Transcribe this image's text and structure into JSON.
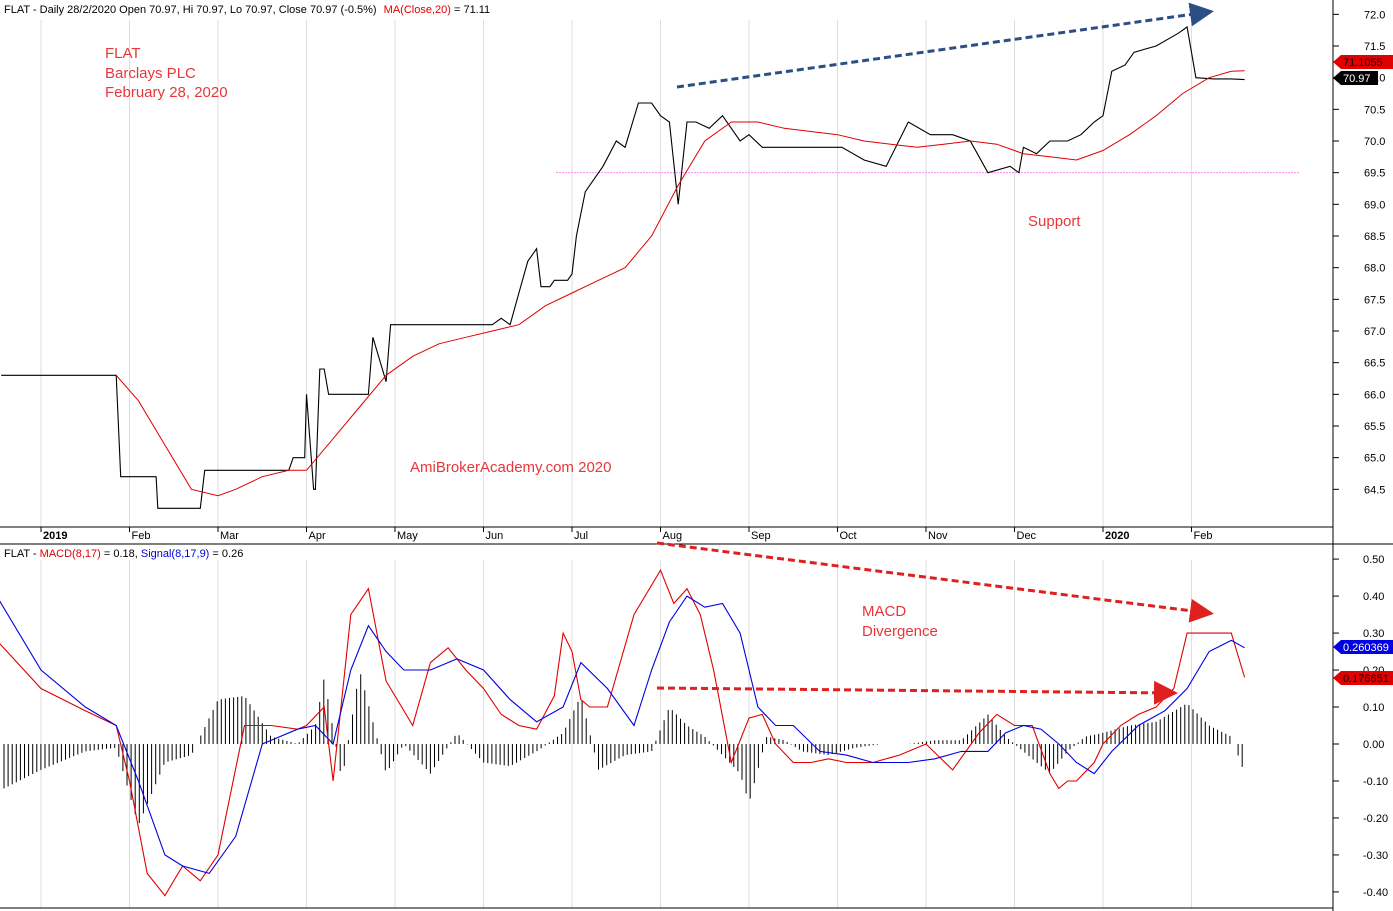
{
  "colors": {
    "price": "#000000",
    "ma": "#e00000",
    "macd": "#e00000",
    "signal": "#0000e0",
    "hist": "#000000",
    "annotation": "#e8363a",
    "trend_blue": "#2b4f85",
    "trend_red": "#e02020",
    "support_line": "#ff88ff",
    "grid": "#c8c8c8",
    "tag_red": "#e00000",
    "tag_blue": "#0000e0",
    "tag_black": "#000000"
  },
  "header": {
    "price_prefix": "FLAT - Daily 28/2/2020 Open 70.97, Hi 70.97, Lo 70.97, Close 70.97 (-0.5%)",
    "ma_label": "MA(Close,20)",
    "ma_value": " = 71.11",
    "macd_prefix": "FLAT - ",
    "macd_label": "MACD(8,17)",
    "macd_value": " = 0.18, ",
    "signal_label": "Signal(8,17,9)",
    "signal_value": " = 0.26"
  },
  "annotations": {
    "title_lines": [
      "FLAT",
      "Barclays PLC",
      "February 28, 2020"
    ],
    "watermark": "AmiBrokerAcademy.com   2020",
    "support": "Support",
    "divergence_lines": [
      "MACD",
      "Divergence"
    ]
  },
  "price_tags": {
    "ma": "71.1055",
    "close": "70.97"
  },
  "macd_tags": {
    "signal": "0.260369",
    "macd": "0.176651"
  },
  "chart_data": [
    {
      "type": "line",
      "panel": "price",
      "x_months": [
        "2019",
        "Feb",
        "Mar",
        "Apr",
        "May",
        "Jun",
        "Jul",
        "Aug",
        "Sep",
        "Oct",
        "Nov",
        "Dec",
        "2020",
        "Feb"
      ],
      "x_month_index": [
        0,
        1,
        2,
        3,
        4,
        5,
        6,
        7,
        8,
        9,
        10,
        11,
        12,
        13
      ],
      "y_ticks": [
        "64.5",
        "65.0",
        "65.5",
        "66.0",
        "66.5",
        "67.0",
        "67.5",
        "68.0",
        "68.5",
        "69.0",
        "69.5",
        "70.0",
        "70.5",
        "71.0",
        "71.5",
        "72.0"
      ],
      "ylim": [
        64.0,
        72.1
      ],
      "grid": "vertical at month starts",
      "support_level": 69.5,
      "series": [
        {
          "name": "FLAT",
          "x": [
            -0.45,
            0.85,
            0.9,
            1.3,
            1.32,
            1.8,
            1.85,
            2.8,
            2.85,
            2.98,
            3.0,
            3.08,
            3.1,
            3.15,
            3.2,
            3.25,
            3.3,
            3.7,
            3.75,
            3.9,
            3.95,
            4.05,
            4.1,
            4.12,
            4.2,
            5.1,
            5.2,
            5.3,
            5.4,
            5.5,
            5.6,
            5.65,
            5.75,
            5.8,
            5.9,
            5.95,
            6.0,
            6.05,
            6.15,
            6.35,
            6.5,
            6.6,
            6.75,
            6.9,
            7.0,
            7.1,
            7.2,
            7.3,
            7.4,
            7.55,
            7.7,
            7.8,
            7.9,
            8.0,
            8.15,
            8.3,
            8.5,
            8.7,
            8.75,
            8.9,
            9.05,
            9.3,
            9.55,
            9.8,
            10.05,
            10.3,
            10.5,
            10.7,
            10.95,
            11.05,
            11.1,
            11.25,
            11.4,
            11.6,
            11.75,
            11.9,
            12.0,
            12.1,
            12.25,
            12.35,
            12.6,
            12.85,
            12.95,
            13.05,
            13.25,
            13.45,
            13.6
          ],
          "values": [
            66.3,
            66.3,
            64.7,
            64.7,
            64.2,
            64.2,
            64.8,
            64.8,
            65.0,
            65.0,
            66.0,
            64.5,
            64.5,
            66.4,
            66.4,
            66.0,
            66.0,
            66.0,
            66.9,
            66.2,
            67.1,
            67.1,
            67.1,
            67.1,
            67.1,
            67.1,
            67.2,
            67.1,
            67.6,
            68.1,
            68.3,
            67.7,
            67.7,
            67.8,
            67.8,
            67.8,
            67.9,
            68.5,
            69.2,
            69.6,
            70.0,
            69.9,
            70.6,
            70.6,
            70.4,
            70.3,
            69.0,
            70.3,
            70.3,
            70.2,
            70.4,
            70.2,
            70.0,
            70.1,
            69.9,
            69.9,
            69.9,
            69.9,
            69.9,
            69.9,
            69.9,
            69.7,
            69.6,
            70.3,
            70.1,
            70.1,
            70.0,
            69.5,
            69.6,
            69.5,
            69.9,
            69.8,
            70.0,
            70.0,
            70.1,
            70.3,
            70.4,
            71.1,
            71.2,
            71.4,
            71.5,
            71.7,
            71.8,
            71.0,
            70.98,
            70.98,
            70.97
          ]
        },
        {
          "name": "MA(Close,20)",
          "x": [
            0.85,
            1.1,
            1.4,
            1.7,
            2.0,
            2.2,
            2.5,
            2.8,
            3.0,
            3.3,
            3.6,
            3.9,
            4.2,
            4.5,
            4.8,
            5.1,
            5.4,
            5.7,
            6.0,
            6.3,
            6.6,
            6.9,
            7.2,
            7.5,
            7.8,
            8.1,
            8.4,
            8.7,
            9.0,
            9.3,
            9.6,
            9.9,
            10.2,
            10.5,
            10.8,
            11.1,
            11.4,
            11.7,
            12.0,
            12.3,
            12.6,
            12.9,
            13.2,
            13.45,
            13.6
          ],
          "values": [
            66.3,
            65.9,
            65.2,
            64.5,
            64.4,
            64.5,
            64.7,
            64.8,
            64.8,
            65.3,
            65.8,
            66.3,
            66.6,
            66.8,
            66.9,
            67.0,
            67.1,
            67.4,
            67.6,
            67.8,
            68.0,
            68.5,
            69.3,
            70.0,
            70.3,
            70.3,
            70.2,
            70.15,
            70.1,
            70.0,
            69.95,
            69.9,
            69.95,
            70.0,
            69.95,
            69.8,
            69.75,
            69.7,
            69.85,
            70.1,
            70.4,
            70.75,
            71.0,
            71.1,
            71.11
          ]
        }
      ]
    },
    {
      "type": "line",
      "panel": "macd",
      "y_ticks": [
        "-0.40",
        "-0.30",
        "-0.20",
        "-0.10",
        "0.00",
        "0.10",
        "0.20",
        "0.30",
        "0.40",
        "0.50"
      ],
      "ylim": [
        -0.43,
        0.53
      ],
      "series": [
        {
          "name": "MACD(8,17)",
          "x": [
            -0.5,
            0.0,
            0.5,
            0.85,
            1.0,
            1.2,
            1.4,
            1.6,
            1.8,
            2.0,
            2.3,
            2.6,
            2.9,
            3.0,
            3.2,
            3.3,
            3.5,
            3.7,
            3.9,
            4.0,
            4.2,
            4.4,
            4.6,
            4.8,
            5.0,
            5.2,
            5.4,
            5.6,
            5.8,
            5.9,
            6.0,
            6.1,
            6.2,
            6.4,
            6.7,
            7.0,
            7.15,
            7.3,
            7.45,
            7.6,
            7.8,
            8.0,
            8.15,
            8.3,
            8.5,
            8.7,
            8.9,
            9.1,
            9.4,
            9.7,
            10.0,
            10.3,
            10.6,
            10.8,
            11.0,
            11.2,
            11.4,
            11.5,
            11.6,
            11.7,
            11.9,
            12.0,
            12.2,
            12.4,
            12.6,
            12.8,
            12.95,
            13.1,
            13.3,
            13.45,
            13.6
          ],
          "values": [
            0.28,
            0.15,
            0.09,
            0.05,
            -0.1,
            -0.35,
            -0.41,
            -0.33,
            -0.37,
            -0.3,
            0.05,
            0.05,
            0.04,
            0.05,
            0.1,
            -0.1,
            0.35,
            0.42,
            0.17,
            0.13,
            0.05,
            0.22,
            0.26,
            0.2,
            0.15,
            0.08,
            0.05,
            0.04,
            0.13,
            0.3,
            0.25,
            0.12,
            0.1,
            0.1,
            0.35,
            0.47,
            0.38,
            0.42,
            0.35,
            0.2,
            -0.05,
            0.07,
            0.08,
            0.0,
            -0.05,
            -0.05,
            -0.04,
            -0.05,
            -0.05,
            -0.03,
            0.0,
            -0.07,
            0.03,
            0.08,
            0.05,
            0.05,
            -0.08,
            -0.12,
            -0.1,
            -0.1,
            -0.05,
            0.0,
            0.05,
            0.08,
            0.1,
            0.15,
            0.3,
            0.3,
            0.3,
            0.3,
            0.18
          ]
        },
        {
          "name": "Signal(8,17,9)",
          "x": [
            -0.5,
            0.0,
            0.5,
            0.85,
            1.1,
            1.4,
            1.6,
            1.9,
            2.2,
            2.5,
            2.9,
            3.1,
            3.3,
            3.5,
            3.7,
            3.9,
            4.1,
            4.4,
            4.7,
            5.0,
            5.3,
            5.6,
            5.9,
            6.1,
            6.4,
            6.7,
            6.9,
            7.1,
            7.3,
            7.5,
            7.7,
            7.9,
            8.1,
            8.3,
            8.5,
            8.8,
            9.1,
            9.4,
            9.8,
            10.1,
            10.4,
            10.7,
            10.9,
            11.1,
            11.3,
            11.5,
            11.7,
            11.9,
            12.1,
            12.4,
            12.7,
            12.95,
            13.2,
            13.45,
            13.6
          ],
          "values": [
            0.4,
            0.2,
            0.1,
            0.05,
            -0.1,
            -0.3,
            -0.33,
            -0.35,
            -0.25,
            0.0,
            0.04,
            0.05,
            0.0,
            0.2,
            0.32,
            0.25,
            0.2,
            0.2,
            0.23,
            0.2,
            0.12,
            0.06,
            0.1,
            0.22,
            0.15,
            0.05,
            0.2,
            0.33,
            0.4,
            0.37,
            0.38,
            0.3,
            0.1,
            0.05,
            0.05,
            -0.02,
            -0.03,
            -0.05,
            -0.05,
            -0.04,
            -0.02,
            -0.02,
            0.03,
            0.05,
            0.04,
            0.0,
            -0.05,
            -0.08,
            -0.02,
            0.05,
            0.09,
            0.15,
            0.25,
            0.28,
            0.26
          ]
        },
        {
          "name": "Histogram",
          "x": [
            -0.5,
            0.0,
            0.5,
            0.85,
            1.1,
            1.4,
            1.7,
            2.0,
            2.3,
            2.6,
            2.9,
            3.1,
            3.2,
            3.4,
            3.6,
            3.9,
            4.1,
            4.4,
            4.7,
            5.0,
            5.3,
            5.6,
            5.9,
            6.1,
            6.3,
            6.6,
            6.9,
            7.1,
            7.3,
            7.5,
            7.7,
            7.9,
            8.0,
            8.2,
            8.4,
            8.6,
            8.9,
            9.2,
            9.5,
            9.8,
            10.1,
            10.4,
            10.7,
            10.9,
            11.1,
            11.4,
            11.6,
            11.8,
            12.0,
            12.3,
            12.6,
            12.95,
            13.2,
            13.45,
            13.6
          ],
          "values": [
            -0.13,
            -0.07,
            -0.02,
            -0.01,
            -0.22,
            -0.05,
            -0.03,
            0.12,
            0.13,
            0.02,
            0.0,
            0.05,
            0.18,
            -0.1,
            0.2,
            -0.08,
            0.0,
            -0.08,
            0.03,
            -0.05,
            -0.06,
            -0.02,
            0.03,
            0.13,
            -0.07,
            -0.03,
            -0.02,
            0.1,
            0.05,
            0.02,
            -0.03,
            -0.08,
            -0.16,
            0.02,
            0.01,
            -0.02,
            -0.03,
            -0.01,
            0.0,
            0.0,
            0.01,
            0.01,
            0.08,
            0.02,
            -0.02,
            -0.08,
            -0.02,
            0.02,
            0.03,
            0.05,
            0.06,
            0.11,
            0.05,
            0.02,
            -0.08
          ]
        }
      ]
    }
  ]
}
